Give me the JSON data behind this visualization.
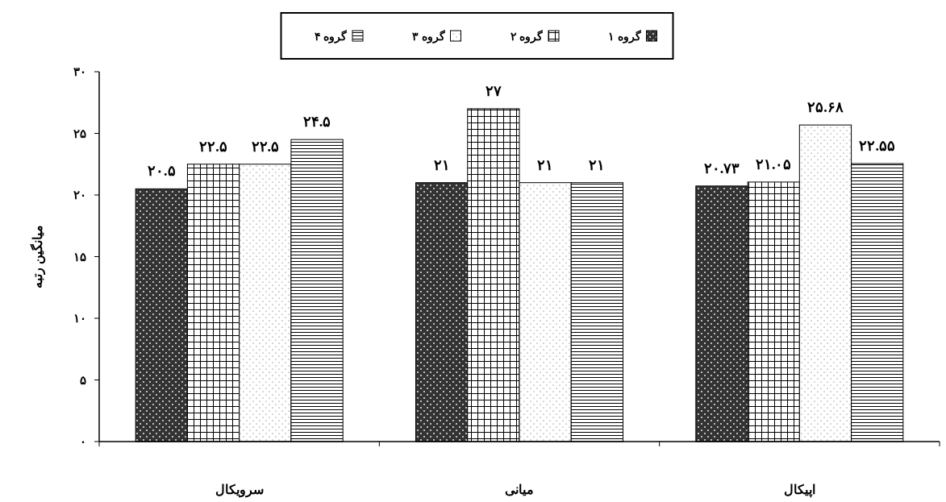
{
  "chart_data": {
    "type": "bar",
    "ylabel": "میانگین رتبه",
    "categories": [
      "سرویکال",
      "میانی",
      "اپیکال"
    ],
    "ylim": [
      0,
      30
    ],
    "yticks": [
      {
        "value": 0,
        "label": "۰"
      },
      {
        "value": 5,
        "label": "۵"
      },
      {
        "value": 10,
        "label": "۱۰"
      },
      {
        "value": 15,
        "label": "۱۵"
      },
      {
        "value": 20,
        "label": "۲۰"
      },
      {
        "value": 25,
        "label": "۲۵"
      },
      {
        "value": 30,
        "label": "۳۰"
      }
    ],
    "legend": "top",
    "grid": false,
    "series": [
      {
        "name": "گروه ۱",
        "color": "#000000",
        "values": [
          20.5,
          21,
          20.73
        ],
        "value_labels": [
          "۲۰.۵",
          "۲۱",
          "۲۰.۷۳"
        ]
      },
      {
        "name": "گروه ۲",
        "color": "#000000",
        "values": [
          22.5,
          27,
          21.05
        ],
        "value_labels": [
          "۲۲.۵",
          "۲۷",
          "۲۱.۰۵"
        ]
      },
      {
        "name": "گروه ۳",
        "color": "#000000",
        "values": [
          22.5,
          21,
          25.68
        ],
        "value_labels": [
          "۲۲.۵",
          "۲۱",
          "۲۵.۶۸"
        ]
      },
      {
        "name": "گروه ۴",
        "color": "#000000",
        "values": [
          24.5,
          21,
          22.55
        ],
        "value_labels": [
          "۲۴.۵",
          "۲۱",
          "۲۲.۵۵"
        ]
      }
    ]
  }
}
